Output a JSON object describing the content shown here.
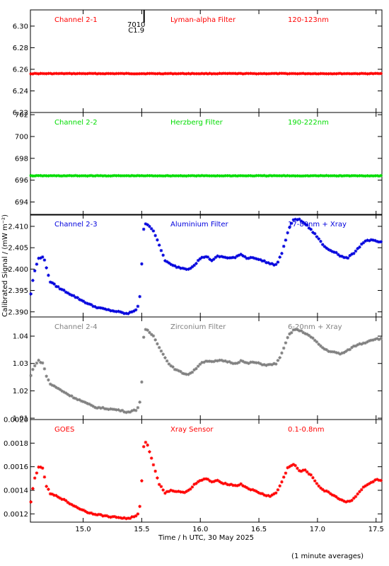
{
  "chart_data": {
    "type": "scatter",
    "xlabel": "Time / h UTC, 30 May 2025",
    "ylabel": "Calibrated Signal / (mW m⁻²)",
    "footer": "(1 minute averages)",
    "x_range": [
      14.55,
      17.55
    ],
    "x_ticks": [
      "15.0",
      "15.5",
      "16.0",
      "16.5",
      "17.0",
      "17.5"
    ],
    "grid": false,
    "flare_annotation": {
      "x": 15.52,
      "region": "7010",
      "class": "C1.9"
    },
    "panels": [
      {
        "channel": "Channel 2-1",
        "filter": "Lyman-alpha Filter",
        "band": "120-123nm",
        "color": "#ff0000",
        "ylim": [
          6.22,
          6.315
        ],
        "y_ticks": [
          "6.22",
          "6.24",
          "6.26",
          "6.28",
          "6.30"
        ],
        "series": [
          {
            "kind": "flat",
            "value": 6.256
          }
        ]
      },
      {
        "channel": "Channel 2-2",
        "filter": "Herzberg Filter",
        "band": "190-222nm",
        "color": "#00dd00",
        "ylim": [
          692.8,
          702.2
        ],
        "y_ticks": [
          "694",
          "696",
          "698",
          "700",
          "702"
        ],
        "series": [
          {
            "kind": "flat",
            "value": 696.4
          }
        ]
      },
      {
        "channel": "Channel 2-3",
        "filter": "Aluminium Filter",
        "band": "17-80nm + Xray",
        "color": "#0000dd",
        "ylim": [
          2.3888,
          2.4128
        ],
        "y_ticks": [
          "2.390",
          "2.395",
          "2.400",
          "2.405",
          "2.410"
        ],
        "series": [
          {
            "kind": "profile",
            "x": [
              14.55,
              14.58,
              14.62,
              14.66,
              14.68,
              14.72,
              14.8,
              14.9,
              15.0,
              15.05,
              15.1,
              15.2,
              15.3,
              15.38,
              15.45,
              15.48,
              15.5,
              15.52,
              15.55,
              15.6,
              15.65,
              15.7,
              15.75,
              15.8,
              15.85,
              15.9,
              15.95,
              16.0,
              16.05,
              16.1,
              16.15,
              16.2,
              16.25,
              16.3,
              16.35,
              16.4,
              16.45,
              16.5,
              16.55,
              16.6,
              16.65,
              16.7,
              16.75,
              16.8,
              16.85,
              16.9,
              16.95,
              17.0,
              17.05,
              17.1,
              17.15,
              17.2,
              17.25,
              17.3,
              17.35,
              17.4,
              17.45,
              17.5,
              17.55
            ],
            "y": [
              2.3935,
              2.399,
              2.4025,
              2.403,
              2.401,
              2.397,
              2.3955,
              2.394,
              2.3925,
              2.3918,
              2.3912,
              2.3905,
              2.39,
              2.3895,
              2.3905,
              2.392,
              2.401,
              2.4108,
              2.4105,
              2.409,
              2.4055,
              2.402,
              2.401,
              2.4005,
              2.4002,
              2.4,
              2.401,
              2.4025,
              2.403,
              2.402,
              2.403,
              2.4028,
              2.4026,
              2.4027,
              2.4035,
              2.4025,
              2.4028,
              2.4022,
              2.4018,
              2.4012,
              2.401,
              2.404,
              2.409,
              2.4118,
              2.4115,
              2.4105,
              2.409,
              2.4075,
              2.4055,
              2.4045,
              2.404,
              2.403,
              2.4025,
              2.4035,
              2.405,
              2.4065,
              2.4068,
              2.4065,
              2.4062
            ]
          }
        ]
      },
      {
        "channel": "Channel 2-4",
        "filter": "Zirconium Filter",
        "band": "6-20nm + Xray",
        "color": "#808080",
        "ylim": [
          1.0095,
          1.047
        ],
        "y_ticks": [
          "1.01",
          "1.02",
          "1.03",
          "1.04"
        ],
        "series": [
          {
            "kind": "profile",
            "x": [
              14.55,
              14.58,
              14.62,
              14.66,
              14.68,
              14.72,
              14.8,
              14.9,
              15.0,
              15.05,
              15.1,
              15.2,
              15.3,
              15.38,
              15.45,
              15.48,
              15.5,
              15.52,
              15.55,
              15.6,
              15.65,
              15.7,
              15.75,
              15.8,
              15.85,
              15.9,
              15.95,
              16.0,
              16.05,
              16.1,
              16.15,
              16.2,
              16.25,
              16.3,
              16.35,
              16.4,
              16.45,
              16.5,
              16.55,
              16.6,
              16.65,
              16.7,
              16.75,
              16.8,
              16.85,
              16.9,
              16.95,
              17.0,
              17.05,
              17.1,
              17.15,
              17.2,
              17.25,
              17.3,
              17.35,
              17.4,
              17.45,
              17.5,
              17.55
            ],
            "y": [
              1.025,
              1.029,
              1.031,
              1.03,
              1.026,
              1.0225,
              1.0205,
              1.018,
              1.016,
              1.015,
              1.014,
              1.0135,
              1.013,
              1.0122,
              1.013,
              1.0145,
              1.023,
              1.0425,
              1.042,
              1.04,
              1.036,
              1.032,
              1.029,
              1.0275,
              1.0265,
              1.026,
              1.0275,
              1.03,
              1.031,
              1.0305,
              1.031,
              1.031,
              1.0305,
              1.03,
              1.031,
              1.03,
              1.0305,
              1.03,
              1.0295,
              1.0295,
              1.03,
              1.034,
              1.04,
              1.0425,
              1.042,
              1.041,
              1.0395,
              1.0375,
              1.0355,
              1.0345,
              1.034,
              1.0335,
              1.0345,
              1.036,
              1.037,
              1.0375,
              1.0385,
              1.039,
              1.039
            ]
          }
        ]
      },
      {
        "channel": "GOES",
        "filter": "Xray Sensor",
        "band": "0.1-0.8nm",
        "color": "#ff0000",
        "ylim": [
          0.00113,
          0.002
        ],
        "y_ticks": [
          "0.0012",
          "0.0014",
          "0.0016",
          "0.0018",
          "0.0020"
        ],
        "series": [
          {
            "kind": "profile",
            "x": [
              14.55,
              14.58,
              14.62,
              14.66,
              14.68,
              14.72,
              14.8,
              14.9,
              15.0,
              15.05,
              15.1,
              15.2,
              15.3,
              15.38,
              15.45,
              15.48,
              15.5,
              15.52,
              15.55,
              15.6,
              15.65,
              15.7,
              15.75,
              15.8,
              15.85,
              15.9,
              15.95,
              16.0,
              16.05,
              16.1,
              16.15,
              16.2,
              16.25,
              16.3,
              16.35,
              16.4,
              16.45,
              16.5,
              16.55,
              16.6,
              16.65,
              16.7,
              16.75,
              16.8,
              16.85,
              16.9,
              16.95,
              17.0,
              17.05,
              17.1,
              17.15,
              17.2,
              17.25,
              17.3,
              17.35,
              17.4,
              17.45,
              17.5,
              17.55
            ],
            "y": [
              0.00127,
              0.00148,
              0.0016,
              0.00158,
              0.00145,
              0.00137,
              0.00134,
              0.00128,
              0.00123,
              0.00121,
              0.0012,
              0.00118,
              0.00117,
              0.00116,
              0.00118,
              0.00121,
              0.00148,
              0.00183,
              0.00178,
              0.00162,
              0.00145,
              0.00138,
              0.0014,
              0.00139,
              0.00138,
              0.0014,
              0.00145,
              0.00148,
              0.0015,
              0.00147,
              0.00148,
              0.00146,
              0.00145,
              0.00144,
              0.00145,
              0.00142,
              0.0014,
              0.00138,
              0.00136,
              0.00135,
              0.00138,
              0.00148,
              0.0016,
              0.00162,
              0.00156,
              0.00157,
              0.00152,
              0.00145,
              0.0014,
              0.00138,
              0.00135,
              0.00132,
              0.0013,
              0.00132,
              0.00138,
              0.00143,
              0.00146,
              0.00149,
              0.00148
            ]
          }
        ]
      }
    ]
  }
}
